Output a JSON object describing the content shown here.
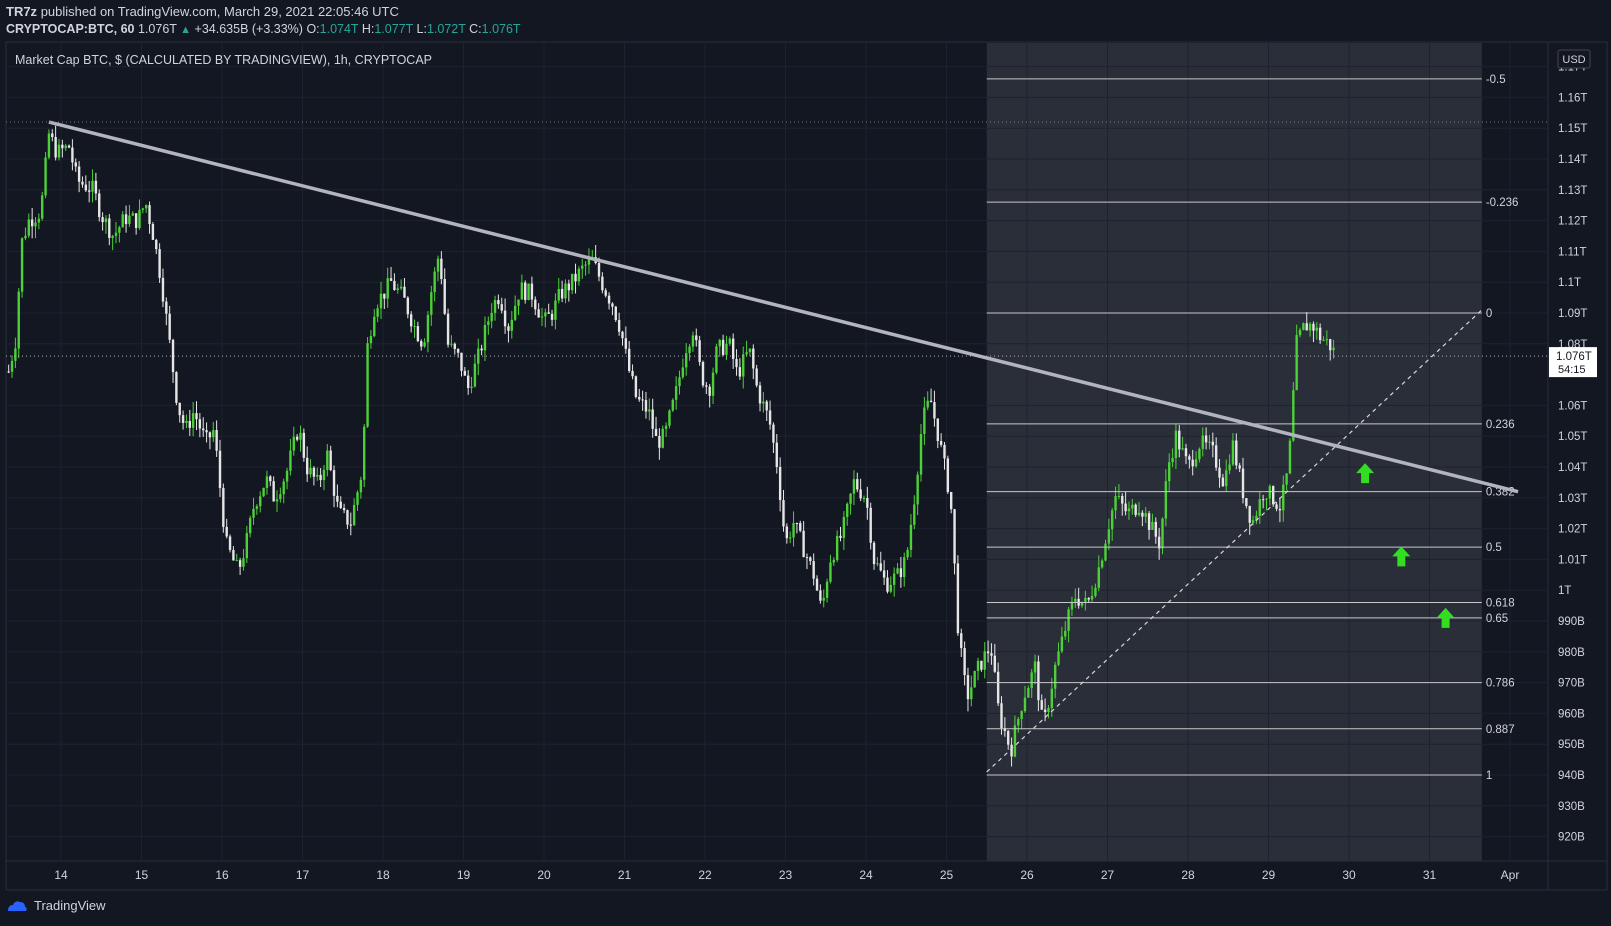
{
  "header": {
    "publisher": "TR7z",
    "published_text": "published on TradingView.com, March 29, 2021 22:05:46 UTC",
    "symbol": "CRYPTOCAP:BTC, 60",
    "last": "1.076T",
    "change": "+34.635B (+3.33%)",
    "o_label": "O:",
    "o_value": "1.074T",
    "h_label": "H:",
    "h_value": "1.077T",
    "l_label": "L:",
    "l_value": "1.072T",
    "c_label": "C:",
    "c_value": "1.076T"
  },
  "footer": {
    "brand": "TradingView"
  },
  "colors": {
    "background": "#131722",
    "fib_zone": "#2a2e39",
    "candle_up": "#4cd137",
    "candle_down": "#e6e6e6",
    "trendline": "#b2b5be",
    "arrow": "#33dd22",
    "text": "#d1d4dc",
    "price_label_bg": "#ffffff"
  },
  "chart_data": {
    "type": "candlestick",
    "title": "Market Cap BTC, $ (CALCULATED BY TRADINGVIEW), 1h, CRYPTOCAP",
    "currency": "USD",
    "ylim": [
      915,
      1175
    ],
    "y_unit": "B",
    "y_ticks": [
      {
        "v": 1170,
        "label": "1.17T"
      },
      {
        "v": 1160,
        "label": "1.16T"
      },
      {
        "v": 1150,
        "label": "1.15T"
      },
      {
        "v": 1140,
        "label": "1.14T"
      },
      {
        "v": 1130,
        "label": "1.13T"
      },
      {
        "v": 1120,
        "label": "1.12T"
      },
      {
        "v": 1110,
        "label": "1.11T"
      },
      {
        "v": 1100,
        "label": "1.1T"
      },
      {
        "v": 1090,
        "label": "1.09T"
      },
      {
        "v": 1080,
        "label": "1.08T"
      },
      {
        "v": 1060,
        "label": "1.06T"
      },
      {
        "v": 1050,
        "label": "1.05T"
      },
      {
        "v": 1040,
        "label": "1.04T"
      },
      {
        "v": 1030,
        "label": "1.03T"
      },
      {
        "v": 1020,
        "label": "1.02T"
      },
      {
        "v": 1010,
        "label": "1.01T"
      },
      {
        "v": 1000,
        "label": "1T"
      },
      {
        "v": 990,
        "label": "990B"
      },
      {
        "v": 980,
        "label": "980B"
      },
      {
        "v": 970,
        "label": "970B"
      },
      {
        "v": 960,
        "label": "960B"
      },
      {
        "v": 950,
        "label": "950B"
      },
      {
        "v": 940,
        "label": "940B"
      },
      {
        "v": 930,
        "label": "930B"
      },
      {
        "v": 920,
        "label": "920B"
      }
    ],
    "x_unit": "days",
    "x_ticks": [
      {
        "d": 14,
        "label": "14"
      },
      {
        "d": 15,
        "label": "15"
      },
      {
        "d": 16,
        "label": "16"
      },
      {
        "d": 17,
        "label": "17"
      },
      {
        "d": 18,
        "label": "18"
      },
      {
        "d": 19,
        "label": "19"
      },
      {
        "d": 20,
        "label": "20"
      },
      {
        "d": 21,
        "label": "21"
      },
      {
        "d": 22,
        "label": "22"
      },
      {
        "d": 23,
        "label": "23"
      },
      {
        "d": 24,
        "label": "24"
      },
      {
        "d": 25,
        "label": "25"
      },
      {
        "d": 26,
        "label": "26"
      },
      {
        "d": 27,
        "label": "27"
      },
      {
        "d": 28,
        "label": "28"
      },
      {
        "d": 29,
        "label": "29"
      },
      {
        "d": 30,
        "label": "30"
      },
      {
        "d": 31,
        "label": "31"
      },
      {
        "d": 32,
        "label": "Apr"
      }
    ],
    "xlim": [
      13.35,
      32.45
    ],
    "current_price": {
      "value": 1076,
      "label": "1.076T",
      "countdown": "54:15"
    },
    "high_marker": 1152,
    "price_path": [
      [
        13.35,
        1071
      ],
      [
        13.45,
        1083
      ],
      [
        13.5,
        1112
      ],
      [
        13.6,
        1120
      ],
      [
        13.75,
        1123
      ],
      [
        13.85,
        1148
      ],
      [
        13.95,
        1142
      ],
      [
        14.1,
        1144
      ],
      [
        14.2,
        1133
      ],
      [
        14.4,
        1130
      ],
      [
        14.5,
        1122
      ],
      [
        14.65,
        1115
      ],
      [
        14.8,
        1121
      ],
      [
        14.95,
        1120
      ],
      [
        15.05,
        1126
      ],
      [
        15.15,
        1115
      ],
      [
        15.25,
        1100
      ],
      [
        15.35,
        1080
      ],
      [
        15.45,
        1060
      ],
      [
        15.55,
        1052
      ],
      [
        15.65,
        1058
      ],
      [
        15.8,
        1048
      ],
      [
        15.9,
        1052
      ],
      [
        16.05,
        1015
      ],
      [
        16.2,
        1006
      ],
      [
        16.3,
        1015
      ],
      [
        16.4,
        1028
      ],
      [
        16.55,
        1036
      ],
      [
        16.65,
        1030
      ],
      [
        16.8,
        1038
      ],
      [
        16.95,
        1053
      ],
      [
        17.05,
        1040
      ],
      [
        17.2,
        1034
      ],
      [
        17.3,
        1045
      ],
      [
        17.45,
        1025
      ],
      [
        17.6,
        1022
      ],
      [
        17.75,
        1040
      ],
      [
        17.8,
        1078
      ],
      [
        17.9,
        1093
      ],
      [
        18.0,
        1096
      ],
      [
        18.1,
        1100
      ],
      [
        18.25,
        1095
      ],
      [
        18.4,
        1085
      ],
      [
        18.5,
        1080
      ],
      [
        18.6,
        1097
      ],
      [
        18.7,
        1110
      ],
      [
        18.8,
        1080
      ],
      [
        18.95,
        1075
      ],
      [
        19.05,
        1065
      ],
      [
        19.2,
        1077
      ],
      [
        19.35,
        1092
      ],
      [
        19.45,
        1096
      ],
      [
        19.55,
        1085
      ],
      [
        19.7,
        1098
      ],
      [
        19.85,
        1096
      ],
      [
        20.0,
        1087
      ],
      [
        20.1,
        1090
      ],
      [
        20.2,
        1096
      ],
      [
        20.35,
        1100
      ],
      [
        20.5,
        1105
      ],
      [
        20.6,
        1107
      ],
      [
        20.75,
        1098
      ],
      [
        20.85,
        1093
      ],
      [
        20.95,
        1085
      ],
      [
        21.05,
        1072
      ],
      [
        21.15,
        1062
      ],
      [
        21.3,
        1058
      ],
      [
        21.4,
        1048
      ],
      [
        21.5,
        1050
      ],
      [
        21.65,
        1065
      ],
      [
        21.75,
        1078
      ],
      [
        21.85,
        1085
      ],
      [
        21.95,
        1070
      ],
      [
        22.05,
        1065
      ],
      [
        22.15,
        1078
      ],
      [
        22.3,
        1080
      ],
      [
        22.4,
        1070
      ],
      [
        22.55,
        1078
      ],
      [
        22.65,
        1065
      ],
      [
        22.8,
        1055
      ],
      [
        22.9,
        1040
      ],
      [
        23.0,
        1015
      ],
      [
        23.1,
        1022
      ],
      [
        23.25,
        1012
      ],
      [
        23.35,
        1005
      ],
      [
        23.45,
        993
      ],
      [
        23.55,
        1010
      ],
      [
        23.7,
        1018
      ],
      [
        23.85,
        1035
      ],
      [
        24.0,
        1030
      ],
      [
        24.1,
        1010
      ],
      [
        24.25,
        1002
      ],
      [
        24.4,
        1005
      ],
      [
        24.5,
        1010
      ],
      [
        24.6,
        1030
      ],
      [
        24.7,
        1055
      ],
      [
        24.8,
        1062
      ],
      [
        24.9,
        1050
      ],
      [
        25.05,
        1030
      ],
      [
        25.15,
        985
      ],
      [
        25.25,
        965
      ],
      [
        25.4,
        975
      ],
      [
        25.55,
        982
      ],
      [
        25.65,
        960
      ],
      [
        25.8,
        948
      ],
      [
        25.95,
        965
      ],
      [
        26.1,
        975
      ],
      [
        26.2,
        955
      ],
      [
        26.35,
        975
      ],
      [
        26.5,
        990
      ],
      [
        26.6,
        998
      ],
      [
        26.75,
        995
      ],
      [
        26.9,
        1008
      ],
      [
        27.0,
        1020
      ],
      [
        27.1,
        1030
      ],
      [
        27.25,
        1025
      ],
      [
        27.4,
        1028
      ],
      [
        27.55,
        1020
      ],
      [
        27.65,
        1015
      ],
      [
        27.75,
        1040
      ],
      [
        27.85,
        1050
      ],
      [
        28.0,
        1040
      ],
      [
        28.15,
        1048
      ],
      [
        28.3,
        1045
      ],
      [
        28.45,
        1035
      ],
      [
        28.55,
        1048
      ],
      [
        28.7,
        1030
      ],
      [
        28.8,
        1022
      ],
      [
        28.95,
        1033
      ],
      [
        29.05,
        1030
      ],
      [
        29.15,
        1027
      ],
      [
        29.25,
        1040
      ],
      [
        29.35,
        1080
      ],
      [
        29.45,
        1086
      ],
      [
        29.55,
        1086
      ],
      [
        29.65,
        1082
      ],
      [
        29.75,
        1080
      ],
      [
        29.85,
        1076
      ]
    ],
    "fibonacci": {
      "x_start": 25.5,
      "x_end": 31.65,
      "levels": [
        {
          "level": "-0.5",
          "value": 1166
        },
        {
          "level": "-0.236",
          "value": 1126
        },
        {
          "level": "0",
          "value": 1090
        },
        {
          "level": "0.236",
          "value": 1054
        },
        {
          "level": "0.382",
          "value": 1032
        },
        {
          "level": "0.5",
          "value": 1014
        },
        {
          "level": "0.618",
          "value": 996
        },
        {
          "level": "0.65",
          "value": 991
        },
        {
          "level": "0.786",
          "value": 970
        },
        {
          "level": "0.887",
          "value": 955
        },
        {
          "level": "1",
          "value": 940
        }
      ]
    },
    "trendline": {
      "from": [
        13.85,
        1152
      ],
      "to": [
        32.1,
        1032
      ]
    },
    "diagonal": {
      "from": [
        25.5,
        941
      ],
      "to": [
        31.65,
        1091
      ]
    },
    "arrows": [
      [
        30.2,
        1038
      ],
      [
        30.65,
        1011
      ],
      [
        31.2,
        991
      ]
    ]
  }
}
